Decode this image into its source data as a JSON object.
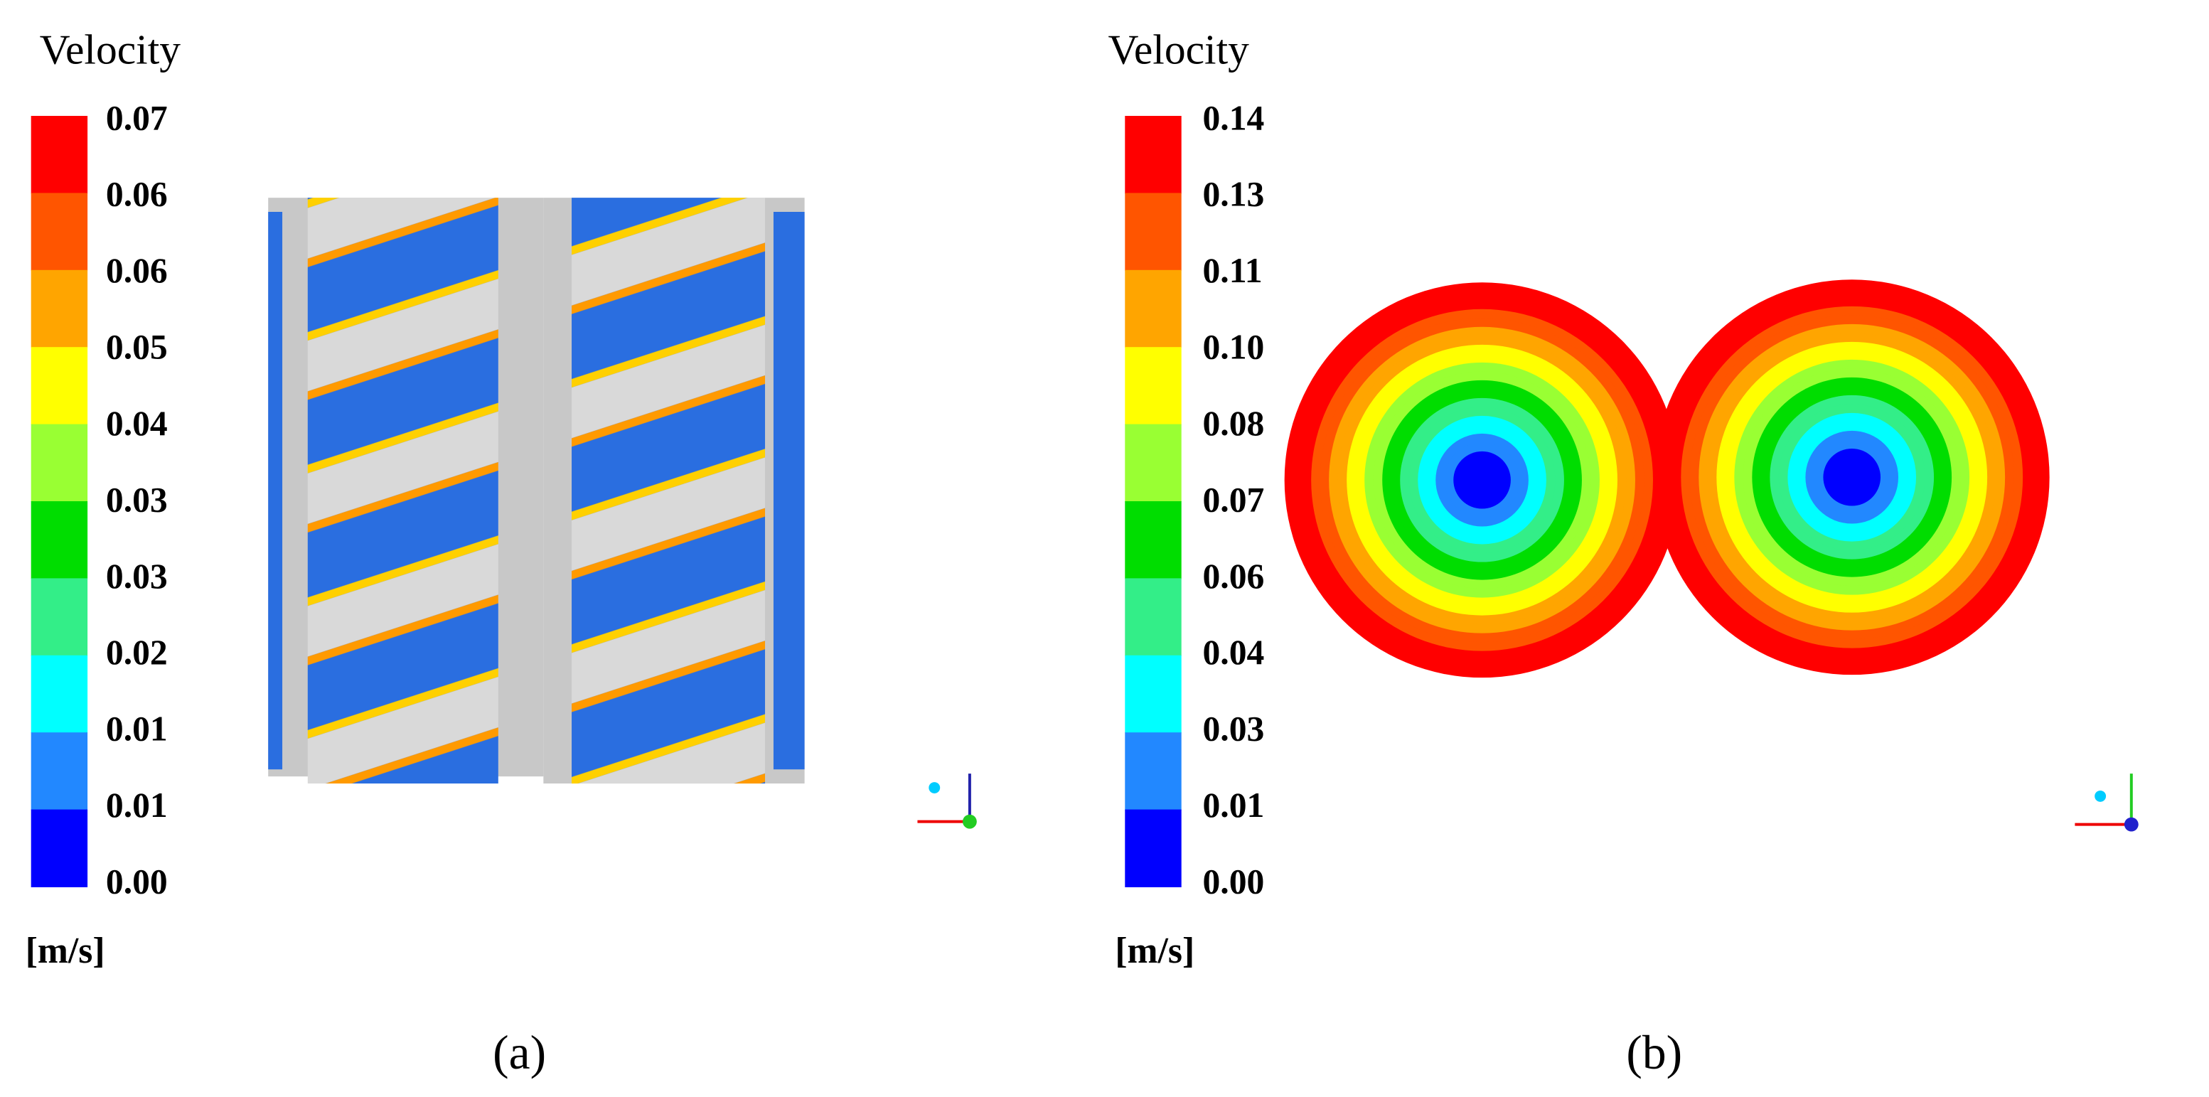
{
  "panels": [
    {
      "legend": {
        "title": "Velocity",
        "labels": [
          "0.07",
          "0.06",
          "0.06",
          "0.05",
          "0.04",
          "0.03",
          "0.03",
          "0.02",
          "0.01",
          "0.01",
          "0.00"
        ],
        "unit": "[m/s]"
      },
      "caption": "(a)"
    },
    {
      "legend": {
        "title": "Velocity",
        "labels": [
          "0.14",
          "0.13",
          "0.11",
          "0.10",
          "0.08",
          "0.07",
          "0.06",
          "0.04",
          "0.03",
          "0.01",
          "0.00"
        ],
        "unit": "[m/s]"
      },
      "caption": "(b)"
    }
  ]
}
